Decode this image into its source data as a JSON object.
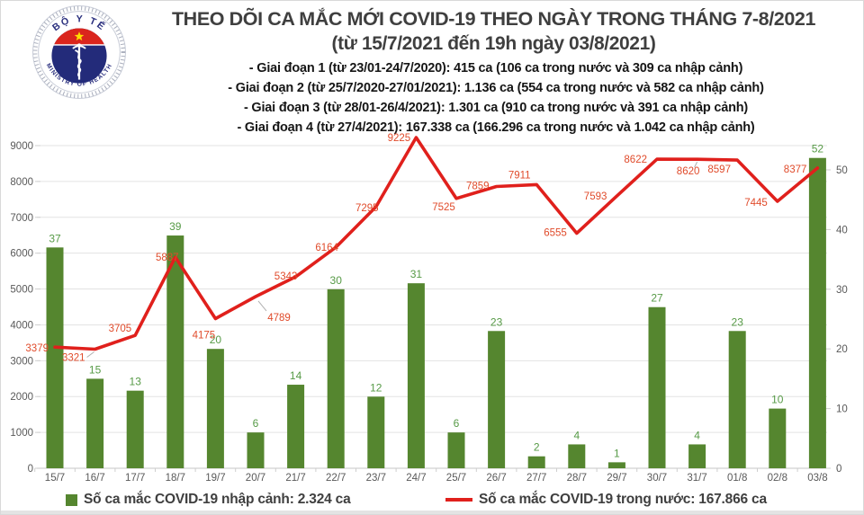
{
  "header": {
    "title": "THEO DÕI CA MẮC MỚI COVID-19 THEO NGÀY TRONG THÁNG 7-8/2021",
    "subtitle": "(từ 15/7/2021 đến 19h ngày 03/8/2021)",
    "phases": [
      "- Giai đoạn 1 (từ 23/01-24/7/2020): 415 ca (106 ca trong nước và 309 ca nhập cảnh)",
      "- Giai đoạn 2 (từ 25/7/2020-27/01/2021): 1.136 ca (554 ca trong nước và 582 ca nhập cảnh)",
      "- Giai đoạn 3 (từ 28/01-26/4/2021): 1.301 ca (910 ca trong nước và 391 ca nhập cảnh)",
      "- Giai đoạn 4 (từ 27/4/2021): 167.338 ca (166.296 ca trong nước và 1.042 ca nhập cảnh)"
    ],
    "logo": {
      "top_text": "BỘ Y TẾ",
      "bottom_text": "MINISTRY OF HEALTH"
    }
  },
  "chart_data": {
    "type": "bar+line",
    "categories": [
      "15/7",
      "16/7",
      "17/7",
      "18/7",
      "19/7",
      "20/7",
      "21/7",
      "22/7",
      "23/7",
      "24/7",
      "25/7",
      "26/7",
      "27/7",
      "28/7",
      "29/7",
      "30/7",
      "31/7",
      "01/8",
      "02/8",
      "03/8"
    ],
    "series": [
      {
        "name": "Số ca mắc COVID-19 nhập cảnh",
        "type": "bar",
        "axis": "right",
        "values": [
          37,
          15,
          13,
          39,
          20,
          6,
          14,
          30,
          12,
          31,
          6,
          23,
          2,
          4,
          1,
          27,
          4,
          23,
          10,
          52
        ]
      },
      {
        "name": "Số ca mắc COVID-19 trong nước",
        "type": "line",
        "axis": "left",
        "values": [
          3379,
          3321,
          3705,
          5887,
          4175,
          4789,
          5343,
          6164,
          7295,
          9225,
          7525,
          7859,
          7911,
          6555,
          7593,
          8622,
          8620,
          8597,
          7445,
          8377
        ]
      }
    ],
    "left_axis": {
      "min": 0,
      "max": 9000,
      "step": 1000,
      "ticks": [
        0,
        1000,
        2000,
        3000,
        4000,
        5000,
        6000,
        7000,
        8000,
        9000
      ]
    },
    "right_axis": {
      "min": 0,
      "max": 50,
      "step": 10,
      "ticks": [
        0,
        10,
        20,
        30,
        40,
        50
      ]
    },
    "grid": true,
    "legend_position": "bottom",
    "title": "THEO DÕI CA MẮC MỚI COVID-19 THEO NGÀY TRONG THÁNG 7-8/2021"
  },
  "legend": {
    "items": [
      {
        "label": "Số ca mắc COVID-19 nhập cảnh: 2.324 ca",
        "marker": "square"
      },
      {
        "label": "Số ca mắc COVID-19 trong nước: 167.866 ca",
        "marker": "line"
      }
    ]
  },
  "colors": {
    "bar": "#55862f",
    "bar_label": "#569a46",
    "line": "#e0201c",
    "line_label": "#e04b2b",
    "axis_text": "#595959",
    "grid": "#e3e3e3",
    "baseline": "#c4c4c4",
    "tick": "#cfcfcf",
    "leader": "#b0b0b0",
    "logo_navy": "#2a2f7e",
    "logo_red": "#da251d",
    "logo_star": "#ffdd00"
  }
}
